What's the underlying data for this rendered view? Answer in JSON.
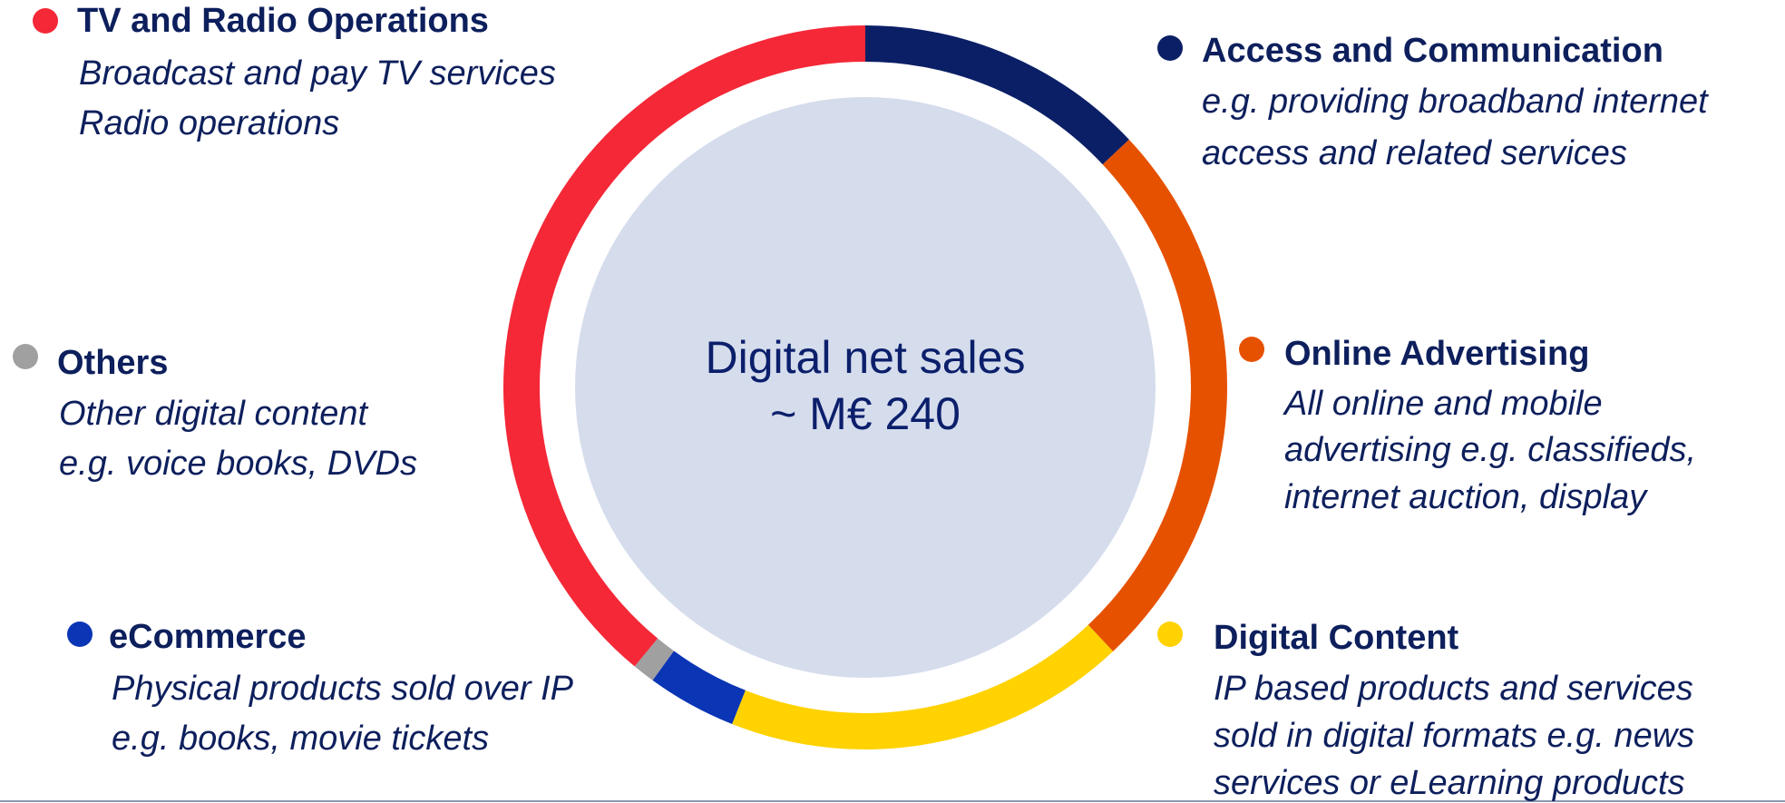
{
  "chart_data": {
    "type": "donut",
    "center_text": [
      "Digital net sales",
      "~ M€ 240"
    ],
    "categories": [
      "Access and Communication",
      "Online Advertising",
      "Digital Content",
      "eCommerce",
      "Others",
      "TV and Radio Operations"
    ],
    "values": [
      13,
      25,
      18,
      4,
      1,
      39
    ],
    "colors": [
      "#0b1f66",
      "#e65100",
      "#ffd200",
      "#0a35b5",
      "#a0a0a0",
      "#f42837"
    ],
    "descriptions": [
      [
        "e.g. providing broadband internet",
        "access and related services"
      ],
      [
        "All online and mobile",
        "advertising e.g. classifieds,",
        "internet auction, display"
      ],
      [
        "IP based products and services",
        "sold in digital formats e.g. news",
        "services or eLearning products"
      ],
      [
        "Physical products sold over IP",
        "e.g. books, movie tickets"
      ],
      [
        "Other digital content",
        "e.g. voice books, DVDs"
      ],
      [
        "Broadcast and pay TV services",
        "Radio operations"
      ]
    ]
  }
}
